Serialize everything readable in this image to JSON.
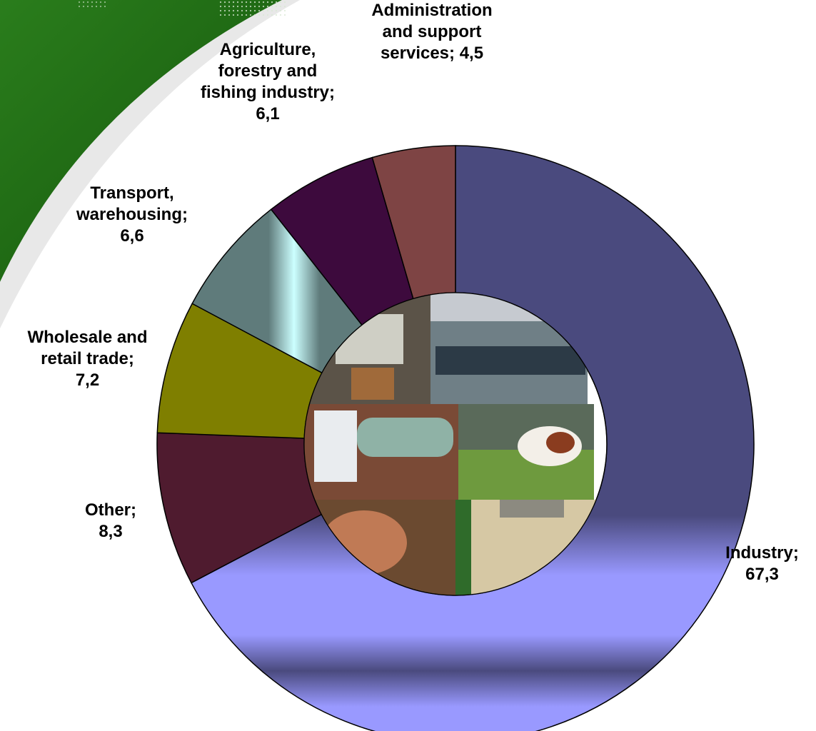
{
  "chart_data": {
    "type": "pie",
    "style": "doughnut",
    "unit": "%",
    "slices": [
      {
        "name": "Industry",
        "value": 67.3,
        "value_label": "67,3",
        "color": "#4a4a7e"
      },
      {
        "name": "Other",
        "value": 8.3,
        "value_label": "8,3",
        "color": "#4f1b2f"
      },
      {
        "name": "Wholesale and retail trade",
        "value": 7.2,
        "value_label": "7,2",
        "color": "#7f7f00"
      },
      {
        "name": "Transport, warehousing",
        "value": 6.6,
        "value_label": "6,6",
        "color": "#5f7b7b"
      },
      {
        "name": "Agriculture, forestry and fishing industry",
        "value": 6.1,
        "value_label": "6,1",
        "color": "#3d0a3d"
      },
      {
        "name": "Administration and support services",
        "value": 4.5,
        "value_label": "4,5",
        "color": "#7e4444"
      }
    ],
    "labels": [
      {
        "key": "administration",
        "lines": [
          "Administration",
          "and support",
          "services; 4,5"
        ]
      },
      {
        "key": "agriculture",
        "lines": [
          "Agriculture,",
          "forestry and",
          "fishing industry;",
          "6,1"
        ]
      },
      {
        "key": "transport",
        "lines": [
          "Transport,",
          "warehousing;",
          "6,6"
        ]
      },
      {
        "key": "wholesale",
        "lines": [
          "Wholesale and",
          "retail trade;",
          "7,2"
        ]
      },
      {
        "key": "other",
        "lines": [
          "Other;",
          "8,3"
        ]
      },
      {
        "key": "industry",
        "lines": [
          "Industry;",
          "67,3"
        ]
      }
    ]
  },
  "theme": {
    "background_swoosh_color": "#1e6b12",
    "center_image": "photo-collage-icon"
  }
}
